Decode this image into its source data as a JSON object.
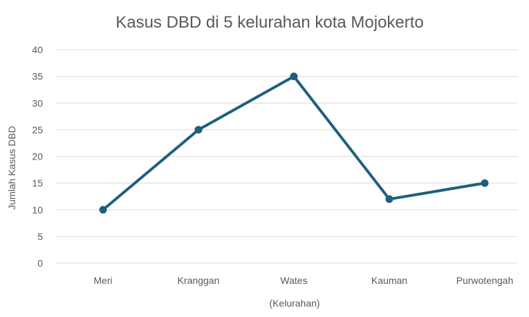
{
  "chart_data": {
    "type": "line",
    "title": "Kasus DBD di 5 kelurahan kota Mojokerto",
    "xlabel": "(Kelurahan)",
    "ylabel": "Jumlah Kasus DBD",
    "categories": [
      "Meri",
      "Kranggan",
      "Wates",
      "Kauman",
      "Purwotengah"
    ],
    "series": [
      {
        "values": [
          10,
          25,
          35,
          12,
          15
        ],
        "color": "#1f5f7f"
      }
    ],
    "ylim": [
      0,
      40
    ],
    "yticks": [
      0,
      5,
      10,
      15,
      20,
      25,
      30,
      35,
      40
    ],
    "grid": true,
    "legend": "none"
  }
}
